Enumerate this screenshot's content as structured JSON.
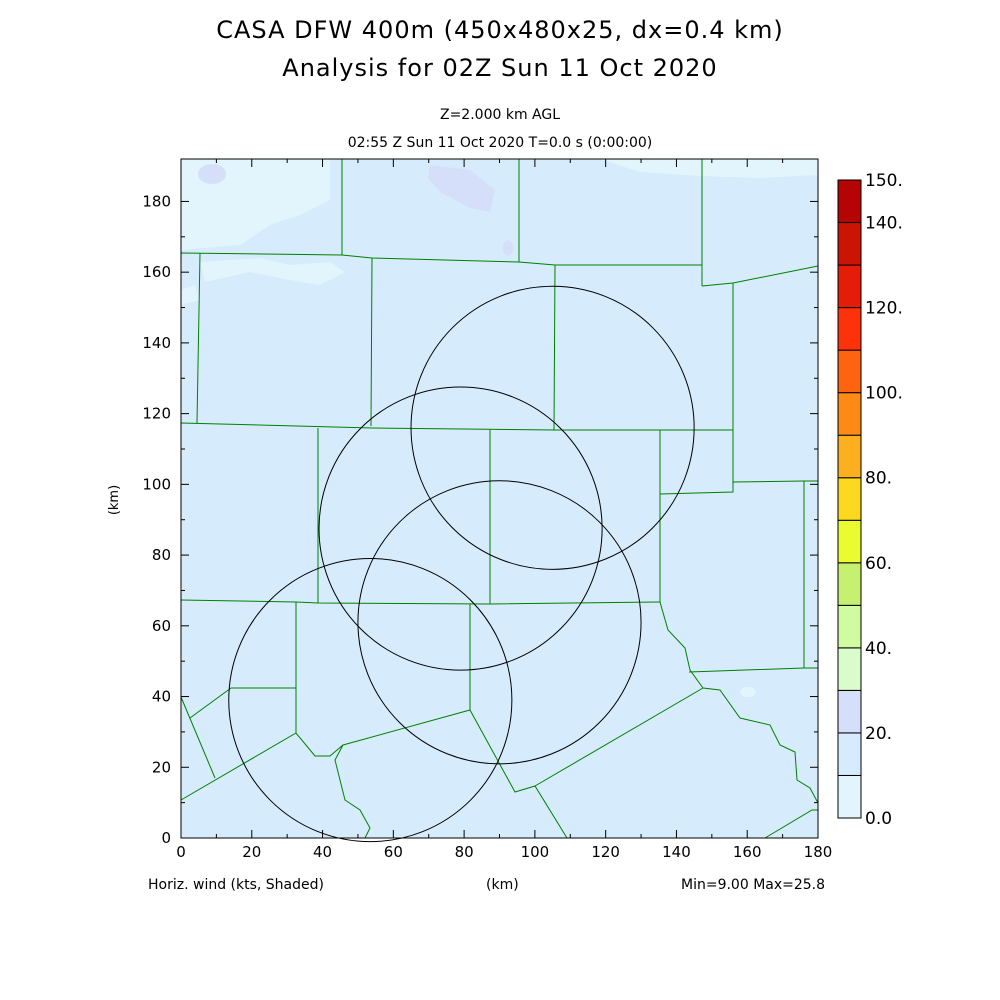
{
  "header": {
    "title_line1": "CASA DFW 400m (450x480x25, dx=0.4 km)",
    "title_line2": "Analysis for 02Z Sun 11 Oct 2020",
    "level": "Z=2.000 km AGL",
    "time": "02:55 Z Sun 11 Oct 2020    T=0.0 s (0:00:00)"
  },
  "footer": {
    "field": "Horiz. wind (kts, Shaded)",
    "xunit": "(km)",
    "minmax": "Min=9.00 Max=25.8"
  },
  "chart_data": {
    "type": "heatmap",
    "field": "Horizontal wind speed (kts)",
    "xlabel": "(km)",
    "ylabel": "(km)",
    "xlim": [
      0,
      180
    ],
    "ylim": [
      0,
      192
    ],
    "xticks": [
      "0",
      "20",
      "40",
      "60",
      "80",
      "100",
      "120",
      "140",
      "160",
      "180"
    ],
    "yticks": [
      "0",
      "20",
      "40",
      "60",
      "80",
      "100",
      "120",
      "140",
      "160",
      "180"
    ],
    "min": 9.0,
    "max": 25.8,
    "dominant_range": "10-20",
    "colorbar": {
      "levels": [
        0,
        10,
        20,
        30,
        40,
        50,
        60,
        70,
        80,
        90,
        100,
        110,
        120,
        130,
        140,
        150
      ],
      "labels": [
        "0.0",
        "20.",
        "40.",
        "60.",
        "80.",
        "100.",
        "120.",
        "140.",
        "150."
      ],
      "label_values": [
        0,
        20,
        40,
        60,
        80,
        100,
        120,
        140,
        150
      ],
      "colors": [
        "#e2f5fd",
        "#d6ebfc",
        "#d6dffa",
        "#d8fcca",
        "#cffca0",
        "#c6f070",
        "#e8fc30",
        "#fcd820",
        "#fcb020",
        "#fc8a14",
        "#fc6410",
        "#fc320a",
        "#e41c08",
        "#cc1404",
        "#b40404"
      ]
    },
    "range_rings_km": [
      {
        "center": [
          105,
          116
        ],
        "radius": 40
      },
      {
        "center": [
          79,
          87.5
        ],
        "radius": 40
      },
      {
        "center": [
          90,
          61
        ],
        "radius": 40
      },
      {
        "center": [
          53.5,
          39
        ],
        "radius": 40
      }
    ]
  }
}
